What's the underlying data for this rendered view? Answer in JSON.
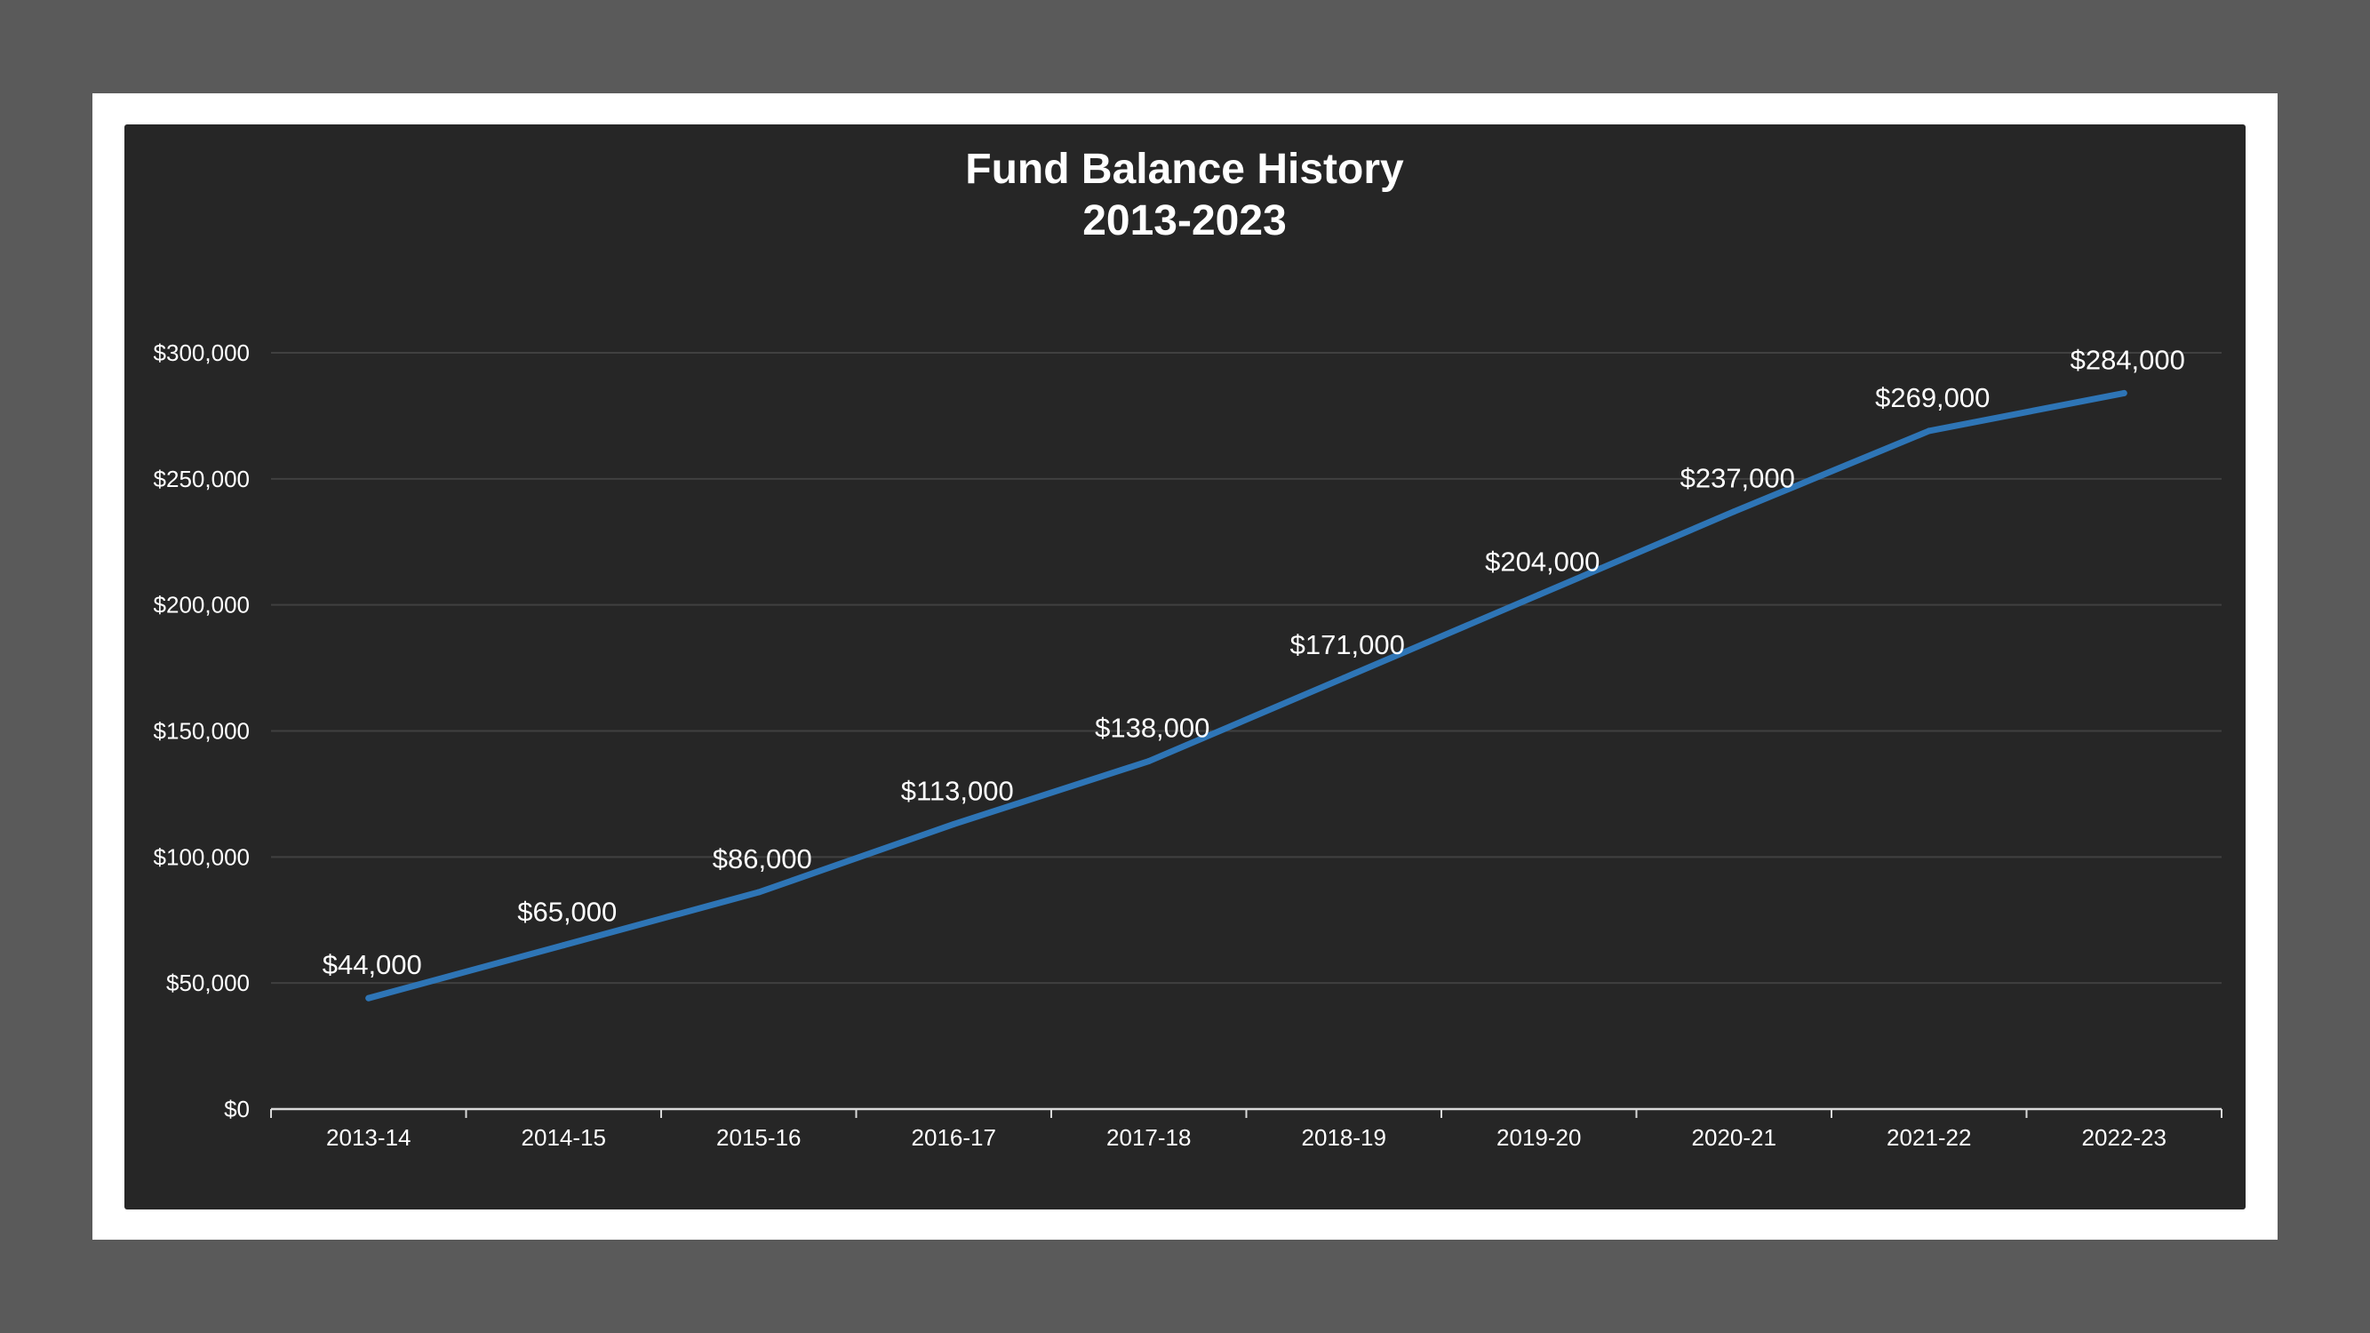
{
  "chart_data": {
    "type": "line",
    "title": "Fund Balance History",
    "subtitle": "2013-2023",
    "xlabel": "",
    "ylabel": "",
    "categories": [
      "2013-14",
      "2014-15",
      "2015-16",
      "2016-17",
      "2017-18",
      "2018-19",
      "2019-20",
      "2020-21",
      "2021-22",
      "2022-23"
    ],
    "series": [
      {
        "values": [
          44000,
          65000,
          86000,
          113000,
          138000,
          171000,
          204000,
          237000,
          269000,
          284000
        ],
        "labels": [
          "$44,000",
          "$65,000",
          "$86,000",
          "$113,000",
          "$138,000",
          "$171,000",
          "$204,000",
          "$237,000",
          "$269,000",
          "$284,000"
        ],
        "color": "#2e75b6"
      }
    ],
    "ylim": [
      0,
      300000
    ],
    "yticks": [
      0,
      50000,
      100000,
      150000,
      200000,
      250000,
      300000
    ],
    "ytick_labels": [
      "$0",
      "$50,000",
      "$100,000",
      "$150,000",
      "$200,000",
      "$250,000",
      "$300,000"
    ],
    "grid": true,
    "legend": "none",
    "colors": {
      "background": "#262626",
      "frame": "#ffffff",
      "page": "#5a5a5a",
      "gridline": "#404040",
      "axis": "#d9d9d9",
      "line": "#2e75b6",
      "text": "#ffffff"
    }
  }
}
